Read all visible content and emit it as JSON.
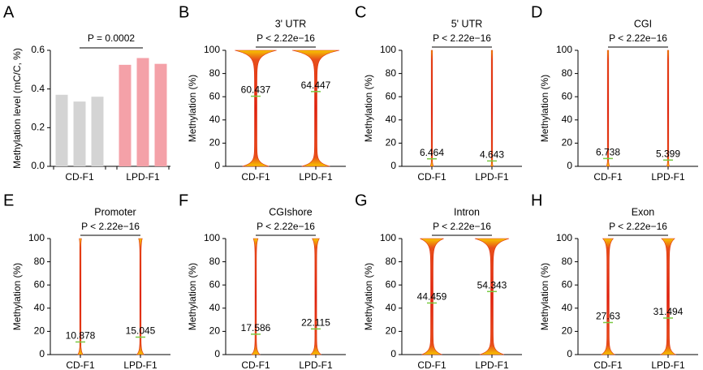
{
  "chart_data": [
    {
      "panel": "A",
      "type": "bar",
      "ylabel": "Methylation level (mC/C, %)",
      "annotation": "P = 0.0002",
      "ylim": [
        0,
        0.6
      ],
      "yticks": [
        {
          "value": 0,
          "label": "0.0"
        },
        0.2,
        0.4,
        0.6
      ],
      "series": [
        {
          "name": "CD-F1",
          "color": "#d4d4d4",
          "values": [
            0.37,
            0.335,
            0.36
          ]
        },
        {
          "name": "LPD-F1",
          "color": "#f4a1a8",
          "values": [
            0.525,
            0.56,
            0.53
          ]
        }
      ]
    },
    {
      "panel": "B",
      "type": "violin",
      "title": "3' UTR",
      "annotation": "P < 2.22e−16",
      "ylabel": "Methylation (%)",
      "categories": [
        "CD-F1",
        "LPD-F1"
      ],
      "values": [
        60.437,
        64.447
      ],
      "ylim": [
        0,
        100
      ],
      "yticks": [
        0,
        20,
        40,
        60,
        80,
        100
      ]
    },
    {
      "panel": "C",
      "type": "violin",
      "title": "5' UTR",
      "annotation": "P < 2.22e−16",
      "ylabel": "Methylation (%)",
      "categories": [
        "CD-F1",
        "LPD-F1"
      ],
      "values": [
        6.464,
        4.643
      ],
      "ylim": [
        0,
        100
      ],
      "yticks": [
        0,
        20,
        40,
        60,
        80,
        100
      ]
    },
    {
      "panel": "D",
      "type": "violin",
      "title": "CGI",
      "annotation": "P < 2.22e−16",
      "ylabel": "Methylation (%)",
      "categories": [
        "CD-F1",
        "LPD-F1"
      ],
      "values": [
        6.738,
        5.399
      ],
      "ylim": [
        0,
        100
      ],
      "yticks": [
        0,
        20,
        40,
        60,
        80,
        100
      ]
    },
    {
      "panel": "E",
      "type": "violin",
      "title": "Promoter",
      "annotation": "P < 2.22e−16",
      "ylabel": "Methylation (%)",
      "categories": [
        "CD-F1",
        "LPD-F1"
      ],
      "values": [
        10.878,
        15.045
      ],
      "ylim": [
        0,
        100
      ],
      "yticks": [
        0,
        20,
        40,
        60,
        80,
        100
      ]
    },
    {
      "panel": "F",
      "type": "violin",
      "title": "CGIshore",
      "annotation": "P < 2.22e−16",
      "ylabel": "Methylation (%)",
      "categories": [
        "CD-F1",
        "LPD-F1"
      ],
      "values": [
        17.586,
        22.115
      ],
      "ylim": [
        0,
        100
      ],
      "yticks": [
        0,
        20,
        40,
        60,
        80,
        100
      ]
    },
    {
      "panel": "G",
      "type": "violin",
      "title": "Intron",
      "annotation": "P < 2.22e−16",
      "ylabel": "Methylation (%)",
      "categories": [
        "CD-F1",
        "LPD-F1"
      ],
      "values": [
        44.459,
        54.343
      ],
      "ylim": [
        0,
        100
      ],
      "yticks": [
        0,
        20,
        40,
        60,
        80,
        100
      ]
    },
    {
      "panel": "H",
      "type": "violin",
      "title": "Exon",
      "annotation": "P < 2.22e−16",
      "ylabel": "Methylation (%)",
      "categories": [
        "CD-F1",
        "LPD-F1"
      ],
      "values": [
        27.63,
        31.494
      ],
      "ylim": [
        0,
        100
      ],
      "yticks": [
        0,
        20,
        40,
        60,
        80,
        100
      ]
    }
  ]
}
